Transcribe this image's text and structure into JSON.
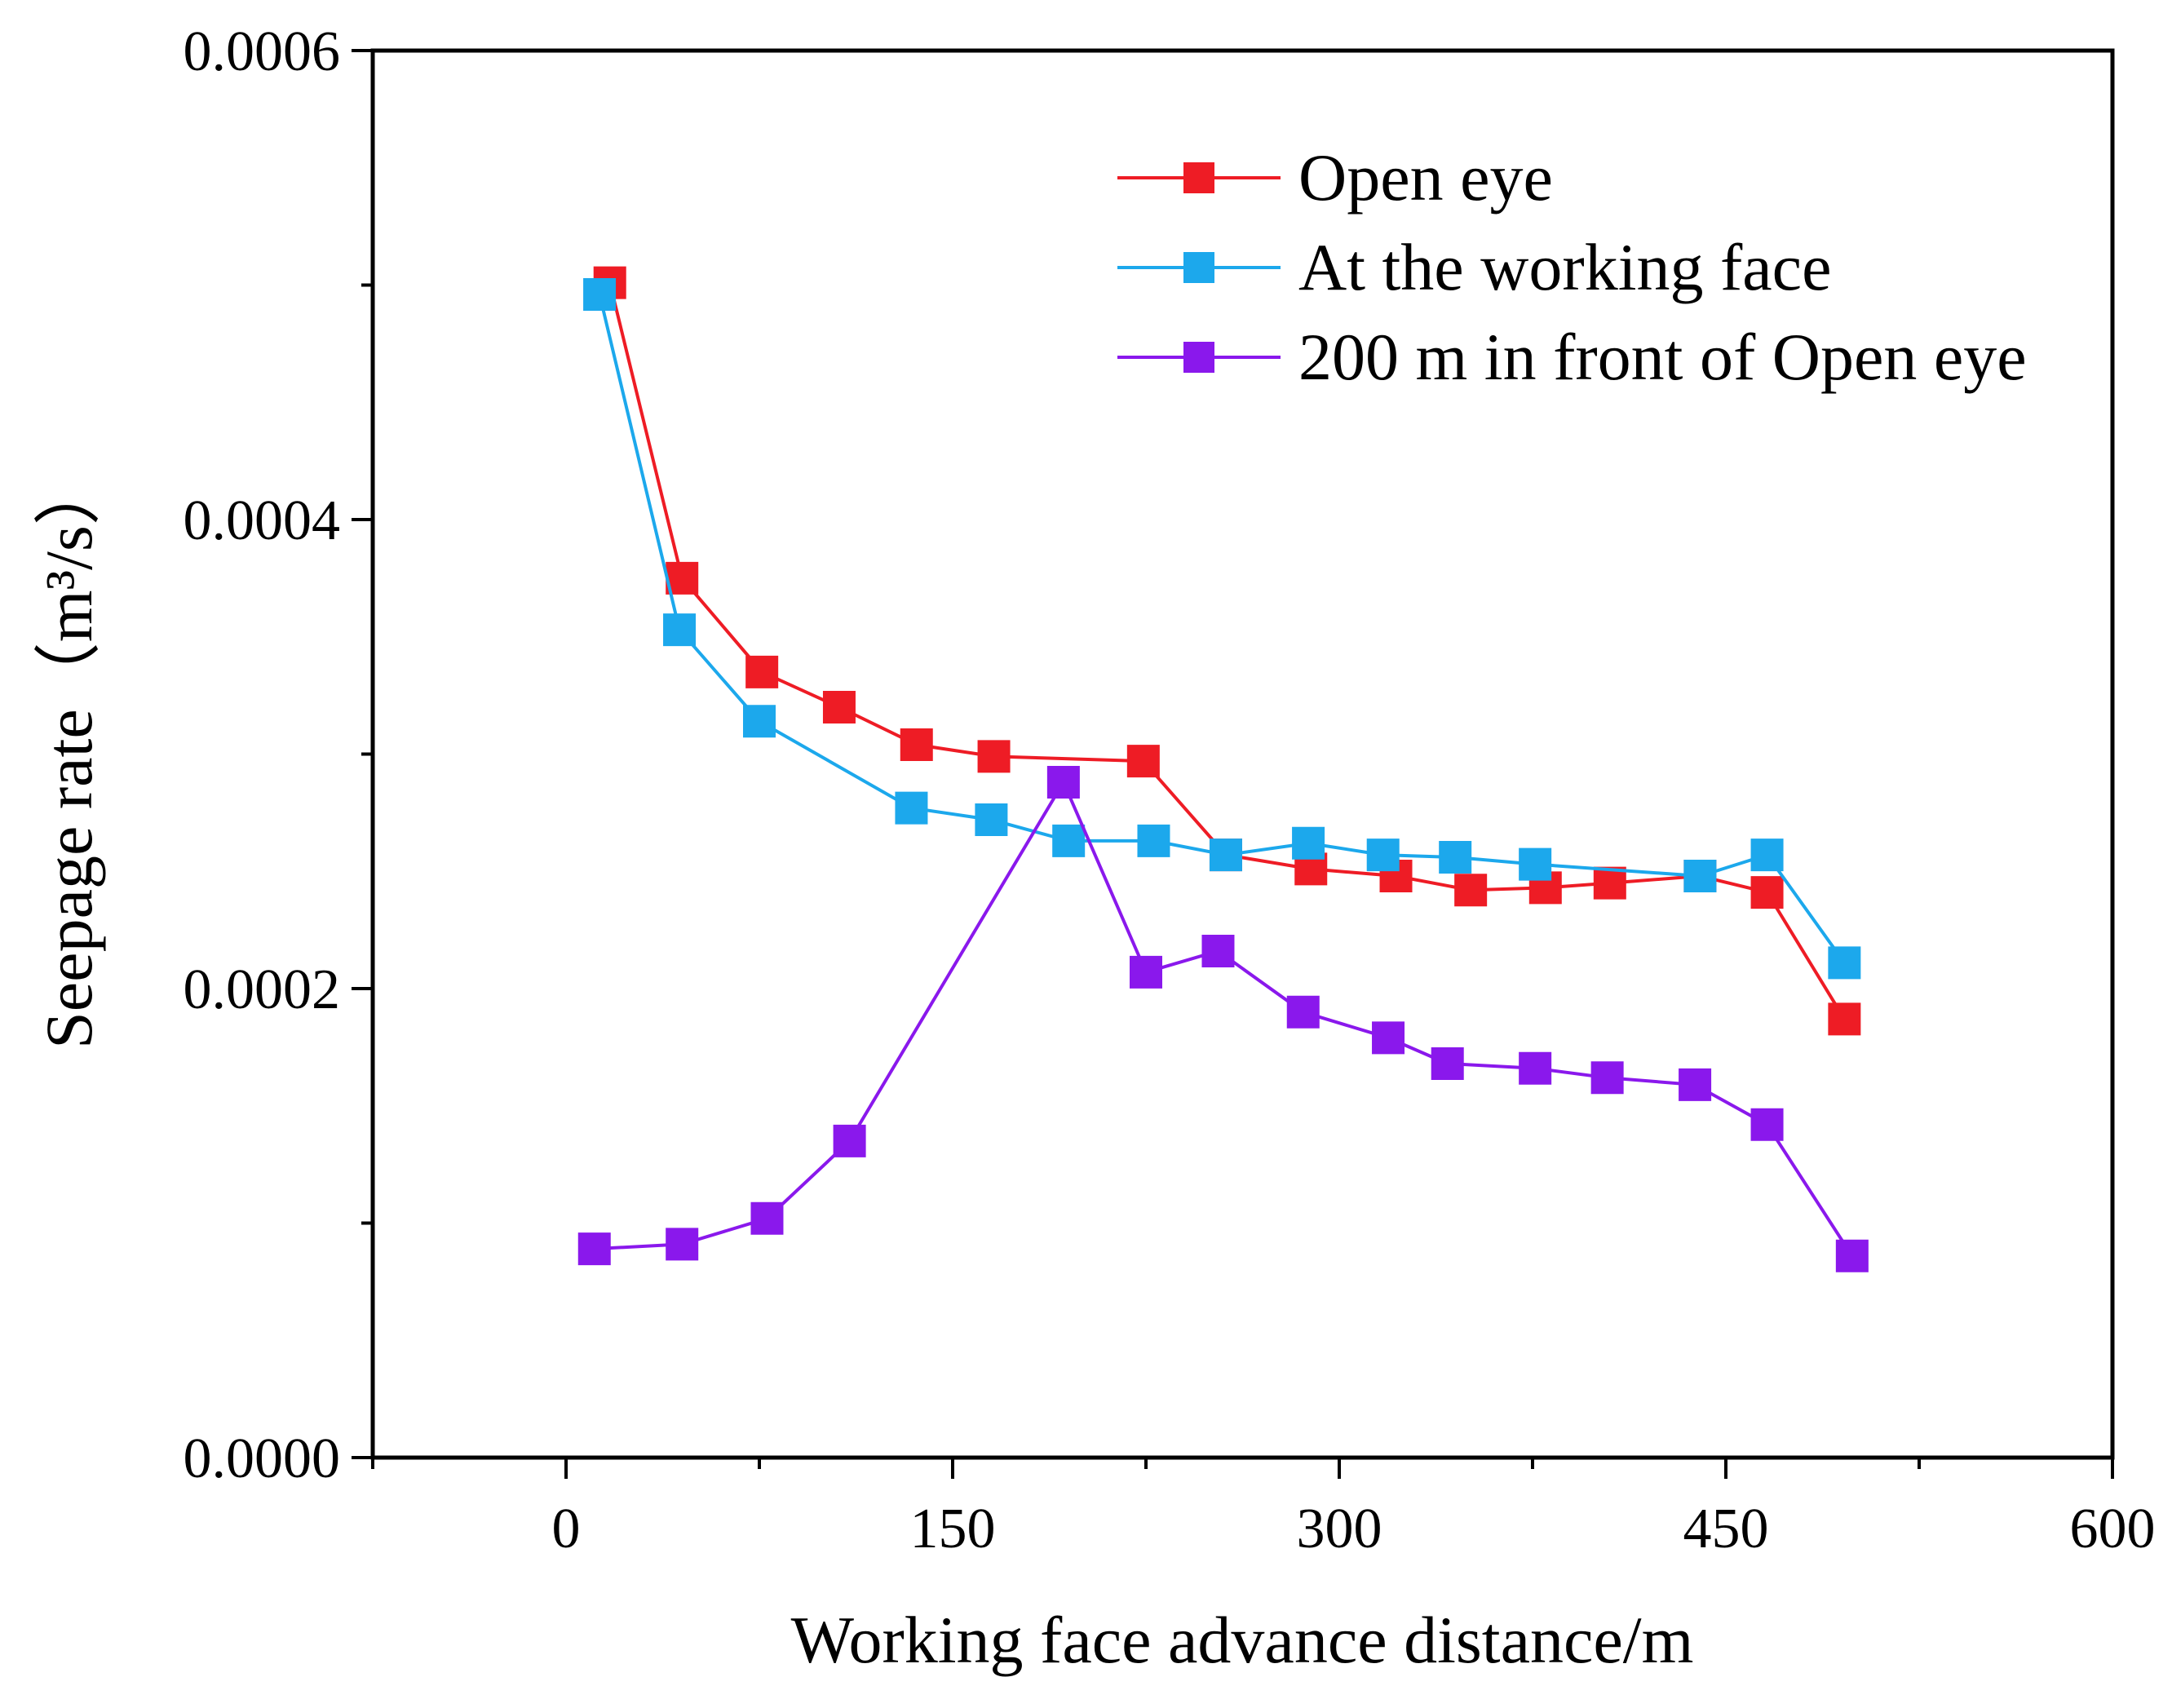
{
  "chart_data": {
    "type": "line",
    "title": "",
    "xlabel": "Working face advance distance/m",
    "ylabel": "Seepage rate（m³/s）",
    "xlim": [
      -75,
      600
    ],
    "ylim": [
      0.0,
      0.0006
    ],
    "x_ticks": [
      0,
      150,
      300,
      450,
      600
    ],
    "x_tick_labels": [
      "0",
      "150",
      "300",
      "450",
      "600"
    ],
    "x_minor_ticks": [
      -75,
      75,
      225,
      375,
      525
    ],
    "y_ticks": [
      0.0,
      0.0002,
      0.0004,
      0.0006
    ],
    "y_tick_labels": [
      "0.0000",
      "0.0002",
      "0.0004",
      "0.0006"
    ],
    "y_minor_ticks": [
      0.0001,
      0.0003,
      0.0005
    ],
    "grid": false,
    "legend_position": "top-right",
    "series": [
      {
        "name": "Open eye",
        "color": "#ee1c25",
        "x": [
          17,
          45,
          76,
          106,
          136,
          166,
          224,
          256,
          289,
          322,
          351,
          380,
          405,
          440,
          466,
          496
        ],
        "y": [
          0.000501,
          0.000375,
          0.000335,
          0.00032,
          0.000304,
          0.000299,
          0.000297,
          0.000257,
          0.000251,
          0.000248,
          0.000242,
          0.000243,
          0.000245,
          0.000248,
          0.000241,
          0.000187
        ]
      },
      {
        "name": "At the working face",
        "color": "#1ca8ec",
        "x": [
          13,
          44,
          75,
          134,
          165,
          195,
          228,
          256,
          288,
          317,
          345,
          376,
          440,
          466,
          496
        ],
        "y": [
          0.000496,
          0.000353,
          0.000314,
          0.000277,
          0.000272,
          0.000263,
          0.000263,
          0.000257,
          0.000262,
          0.000257,
          0.000256,
          0.000253,
          0.000248,
          0.000257,
          0.000211
        ]
      },
      {
        "name": "200 m in front of Open eye",
        "color": "#8a18ec",
        "x": [
          11,
          45,
          78,
          110,
          193,
          225,
          253,
          286,
          319,
          342,
          376,
          404,
          438,
          466,
          499
        ],
        "y": [
          8.9e-05,
          9.1e-05,
          0.000102,
          0.000135,
          0.000288,
          0.000207,
          0.000216,
          0.00019,
          0.000179,
          0.000168,
          0.000166,
          0.000162,
          0.000159,
          0.000142,
          8.6e-05
        ]
      }
    ]
  }
}
